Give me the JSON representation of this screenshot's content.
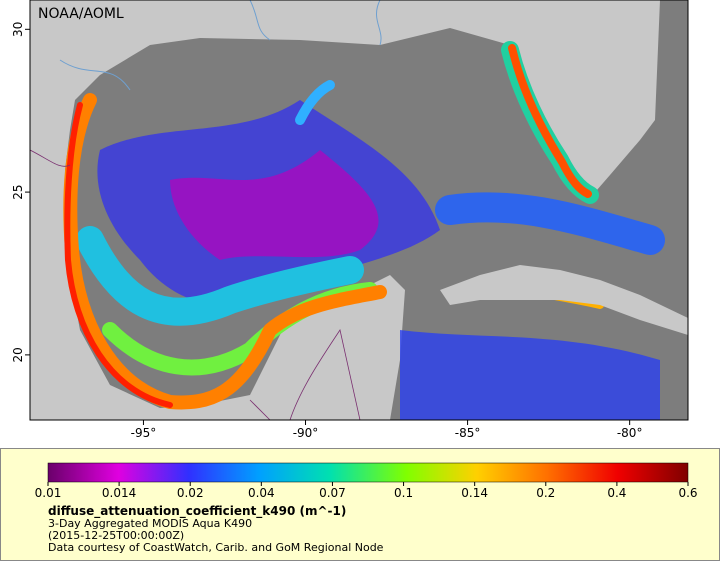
{
  "map": {
    "source": "NOAA/AOML",
    "xlim": [
      -98.5,
      -78.2
    ],
    "ylim": [
      18,
      30.9
    ],
    "xticks": [
      {
        "value": -95,
        "label": "-95°"
      },
      {
        "value": -90,
        "label": "-90°"
      },
      {
        "value": -85,
        "label": "-85°"
      },
      {
        "value": -80,
        "label": "-80°"
      }
    ],
    "yticks": [
      20,
      25,
      30
    ]
  },
  "legend": {
    "ticks": [
      0.01,
      0.014,
      0.02,
      0.04,
      0.07,
      0.1,
      0.14,
      0.2,
      0.4,
      0.6
    ],
    "title": "diffuse_attenuation_coefficient_k490 (m^-1)",
    "lines": [
      "3-Day Aggregated MODIS Aqua K490",
      "(2015-12-25T00:00:00Z)",
      "Data courtesy of CoastWatch, Carib. and GoM Regional Node"
    ]
  }
}
